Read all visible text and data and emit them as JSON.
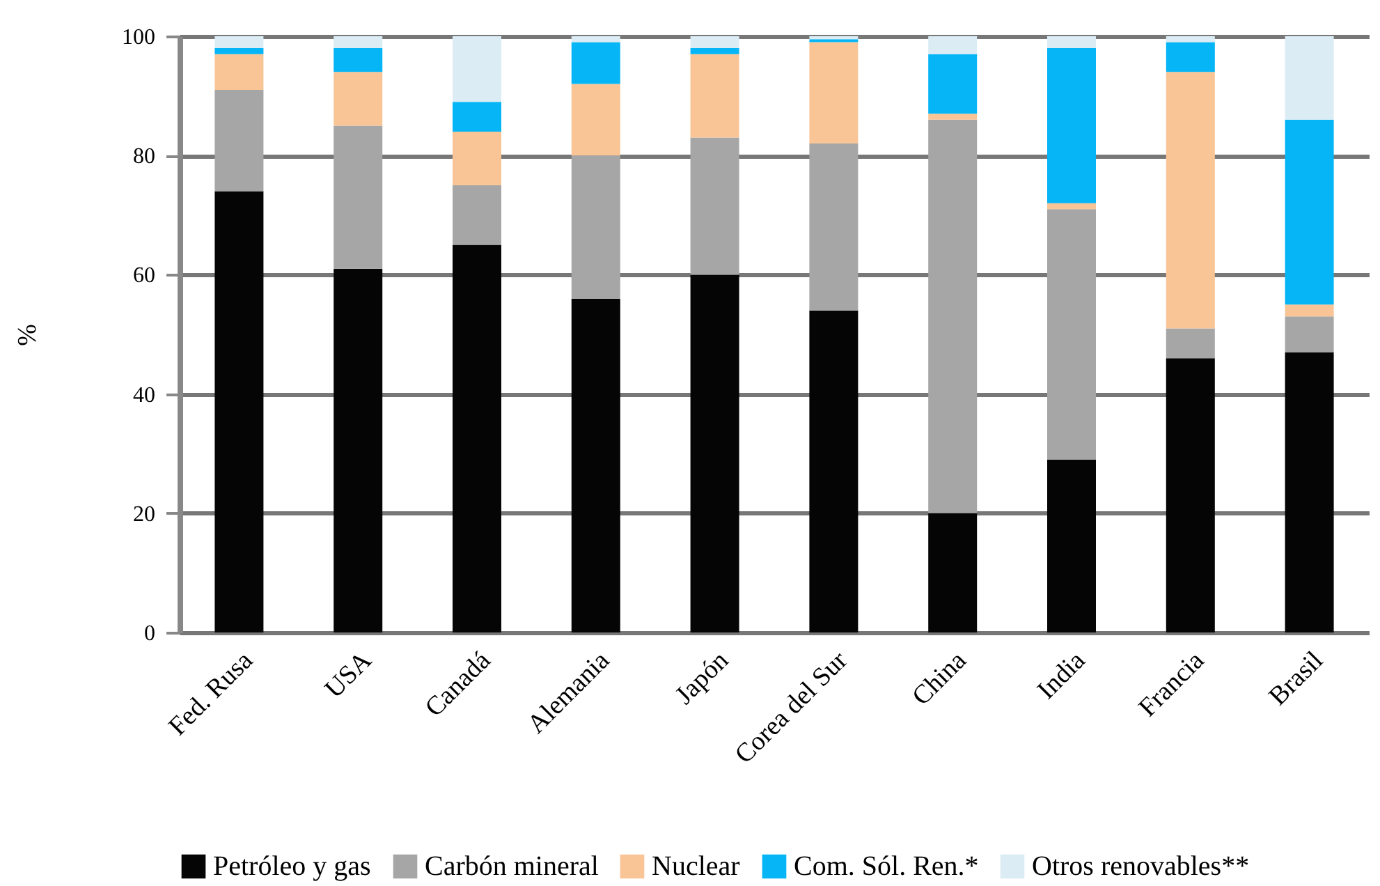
{
  "chart_data": {
    "type": "bar",
    "stacked": true,
    "ylabel": "%",
    "categories": [
      "Fed. Rusa",
      "USA",
      "Canadá",
      "Alemania",
      "Japón",
      "Corea del Sur",
      "China",
      "India",
      "Francia",
      "Brasil"
    ],
    "series": [
      {
        "name": "Petróleo y gas",
        "color": "#050505",
        "values": [
          74,
          61,
          65,
          56,
          60,
          54,
          20,
          29,
          46,
          47
        ]
      },
      {
        "name": "Carbón mineral",
        "color": "#a6a6a6",
        "values": [
          17,
          24,
          10,
          24,
          23,
          28,
          66,
          42,
          5,
          6
        ]
      },
      {
        "name": "Nuclear",
        "color": "#fac596",
        "values": [
          6,
          9,
          9,
          12,
          14,
          17,
          1,
          1,
          43,
          2
        ]
      },
      {
        "name": "Com. Sól. Ren.*",
        "color": "#05b5f5",
        "values": [
          1,
          4,
          5,
          7,
          1,
          0.5,
          10,
          26,
          5,
          31
        ]
      },
      {
        "name": "Otros renovables**",
        "color": "#dbecf4",
        "values": [
          2,
          2,
          11,
          1,
          2,
          0.5,
          3,
          2,
          1,
          14
        ]
      }
    ],
    "ylim": [
      0,
      100
    ],
    "yticks": [
      0,
      20,
      40,
      60,
      80,
      100
    ],
    "grid": "y",
    "legend": "bottom"
  }
}
